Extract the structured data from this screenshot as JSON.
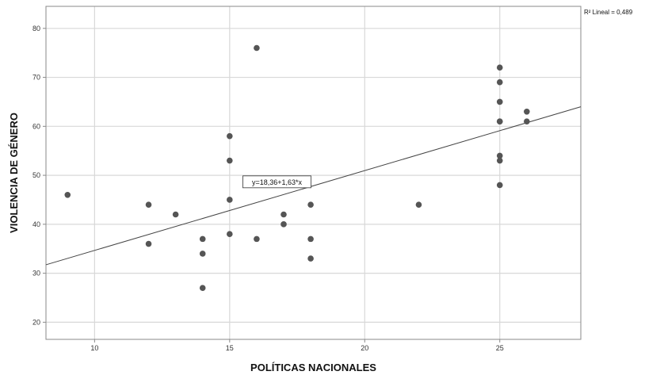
{
  "chart_data": {
    "type": "scatter",
    "xlabel": "POLÍTICAS NACIONALES",
    "ylabel": "VIOLENCIA DE GÉNERO",
    "xlim": [
      8.2,
      28
    ],
    "ylim": [
      16.5,
      84.5
    ],
    "x_ticks": [
      10,
      15,
      20,
      25
    ],
    "y_ticks": [
      20,
      30,
      40,
      50,
      60,
      70,
      80
    ],
    "x_tick_labels": [
      "10",
      "15",
      "20",
      "25"
    ],
    "y_tick_labels": [
      "20",
      "30",
      "40",
      "50",
      "60",
      "70",
      "80"
    ],
    "grid": true,
    "points": [
      {
        "x": 9,
        "y": 46
      },
      {
        "x": 12,
        "y": 44
      },
      {
        "x": 12,
        "y": 36
      },
      {
        "x": 13,
        "y": 42
      },
      {
        "x": 14,
        "y": 37
      },
      {
        "x": 14,
        "y": 34
      },
      {
        "x": 14,
        "y": 27
      },
      {
        "x": 15,
        "y": 58
      },
      {
        "x": 15,
        "y": 53
      },
      {
        "x": 15,
        "y": 45
      },
      {
        "x": 15,
        "y": 38
      },
      {
        "x": 16,
        "y": 76
      },
      {
        "x": 16,
        "y": 37
      },
      {
        "x": 17,
        "y": 42
      },
      {
        "x": 17,
        "y": 40
      },
      {
        "x": 18,
        "y": 44
      },
      {
        "x": 18,
        "y": 37
      },
      {
        "x": 18,
        "y": 33
      },
      {
        "x": 22,
        "y": 44
      },
      {
        "x": 25,
        "y": 72
      },
      {
        "x": 25,
        "y": 69
      },
      {
        "x": 25,
        "y": 65
      },
      {
        "x": 25,
        "y": 61
      },
      {
        "x": 25,
        "y": 61
      },
      {
        "x": 25,
        "y": 54
      },
      {
        "x": 25,
        "y": 53
      },
      {
        "x": 25,
        "y": 48
      },
      {
        "x": 26,
        "y": 63
      },
      {
        "x": 26,
        "y": 61
      }
    ],
    "fit_line": {
      "intercept": 18.36,
      "slope": 1.63,
      "equation_label": "y=18,36+1,63*x"
    },
    "r2_label": "R² Lineal = 0,489",
    "colors": {
      "point": "#555555",
      "grid": "#d8d8d8",
      "line": "#444444",
      "axis": "#8a8a8a"
    }
  }
}
